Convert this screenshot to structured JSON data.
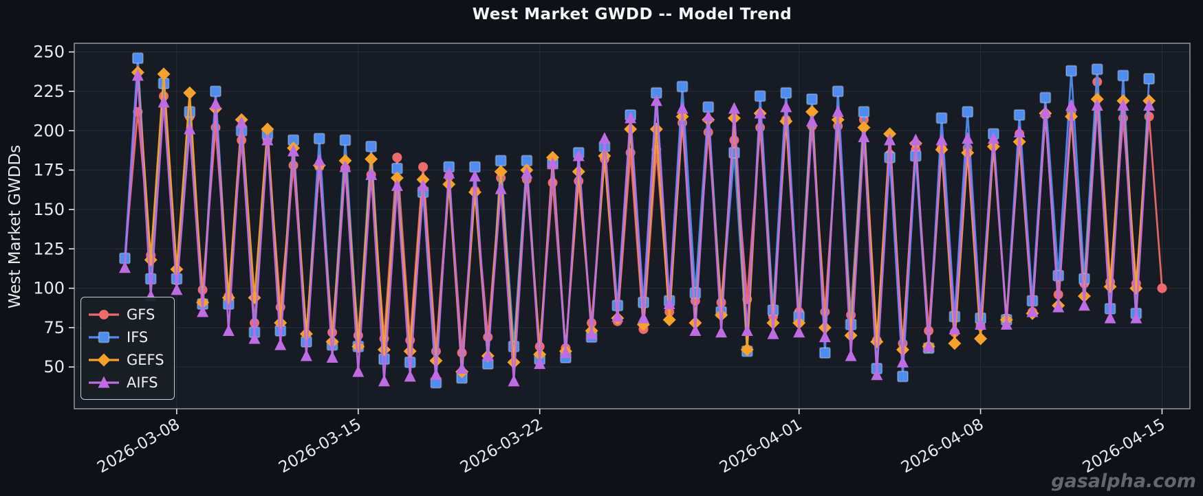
{
  "page_title": "West Market GWDD -- Model Trend",
  "watermark": "gasalpha.com",
  "chart_data": {
    "type": "line",
    "title": "West Market GWDD -- Model Trend",
    "xlabel": "",
    "ylabel": "West Market GWDDs",
    "grid": true,
    "legend_position": "lower left inside",
    "x_start": "2026-03-06 00:00",
    "x_step_hours": 12,
    "x_tick_labels": [
      "2026-03-08",
      "2026-03-15",
      "2026-03-22",
      "2026-04-01",
      "2026-04-08",
      "2026-04-15"
    ],
    "x_tick_index": [
      4,
      18,
      32,
      52,
      66,
      80
    ],
    "y_ticks": [
      50,
      75,
      100,
      125,
      150,
      175,
      200,
      225,
      250
    ],
    "ylim": [
      23.5,
      255.5
    ],
    "xlim_index": [
      -3.9,
      82.15
    ],
    "colors": {
      "figure_bg": "#0e1117",
      "axes_bg": "#171b23",
      "grid": "#262b34",
      "spine": "#8b8f96",
      "tick_text": "#e9eaec",
      "title_text": "#f4f5f7",
      "legend_border": "#c9ccd1",
      "watermark_text": "#62666d"
    },
    "series": [
      {
        "name": "GFS",
        "color": "#ee6b6b",
        "marker": "circle",
        "values": [
          119,
          212,
          121,
          222,
          105,
          209,
          99,
          202,
          95,
          194,
          78,
          194,
          88,
          178,
          71,
          177,
          72,
          176,
          70,
          172,
          68,
          183,
          67,
          177,
          60,
          171,
          59,
          162,
          69,
          170,
          63,
          169,
          63,
          167,
          62,
          168,
          78,
          182,
          79,
          186,
          74,
          188,
          85,
          205,
          92,
          199,
          91,
          194,
          93,
          202,
          82,
          207,
          85,
          203,
          85,
          203,
          83,
          207,
          67,
          185,
          65,
          188,
          73,
          189,
          72,
          189,
          76,
          190,
          81,
          198,
          85,
          210,
          96,
          212,
          103,
          231,
          104,
          208,
          103,
          209,
          100
        ]
      },
      {
        "name": "IFS",
        "color": "#4e8cf0",
        "marker": "square",
        "values": [
          119,
          246,
          106,
          230,
          106,
          212,
          90,
          225,
          90,
          200,
          72,
          198,
          73,
          194,
          66,
          195,
          64,
          194,
          63,
          190,
          55,
          176,
          53,
          161,
          40,
          177,
          43,
          177,
          52,
          181,
          63,
          181,
          55,
          179,
          56,
          186,
          69,
          190,
          89,
          210,
          91,
          224,
          92,
          228,
          97,
          215,
          85,
          186,
          60,
          222,
          86,
          224,
          82,
          220,
          59,
          225,
          77,
          212,
          49,
          183,
          44,
          184,
          62,
          208,
          82,
          212,
          81,
          198,
          80,
          210,
          92,
          221,
          108,
          238,
          106,
          239,
          87,
          235,
          84,
          233,
          null
        ]
      },
      {
        "name": "GEFS",
        "color": "#f5a12b",
        "marker": "diamond",
        "values": [
          null,
          237,
          118,
          236,
          112,
          224,
          91,
          214,
          94,
          207,
          94,
          201,
          78,
          189,
          71,
          178,
          66,
          181,
          63,
          182,
          61,
          170,
          60,
          169,
          54,
          166,
          47,
          161,
          57,
          174,
          53,
          175,
          58,
          183,
          60,
          174,
          73,
          184,
          81,
          201,
          77,
          201,
          80,
          209,
          78,
          207,
          83,
          208,
          61,
          211,
          78,
          206,
          78,
          212,
          75,
          207,
          70,
          202,
          66,
          198,
          61,
          192,
          63,
          188,
          65,
          186,
          68,
          190,
          80,
          193,
          84,
          211,
          89,
          209,
          95,
          220,
          101,
          219,
          100,
          219,
          null
        ]
      },
      {
        "name": "AIFS",
        "color": "#bf6be4",
        "marker": "triangle",
        "values": [
          113,
          235,
          95,
          218,
          99,
          201,
          85,
          217,
          73,
          205,
          68,
          194,
          64,
          187,
          57,
          181,
          56,
          177,
          47,
          172,
          41,
          165,
          44,
          165,
          45,
          173,
          49,
          171,
          57,
          163,
          41,
          173,
          52,
          179,
          59,
          184,
          71,
          195,
          82,
          208,
          81,
          219,
          90,
          214,
          73,
          209,
          72,
          214,
          73,
          211,
          71,
          215,
          72,
          206,
          69,
          212,
          57,
          196,
          45,
          194,
          53,
          194,
          63,
          194,
          74,
          195,
          77,
          195,
          77,
          199,
          85,
          212,
          88,
          216,
          89,
          216,
          81,
          216,
          81,
          216,
          null
        ]
      }
    ]
  }
}
